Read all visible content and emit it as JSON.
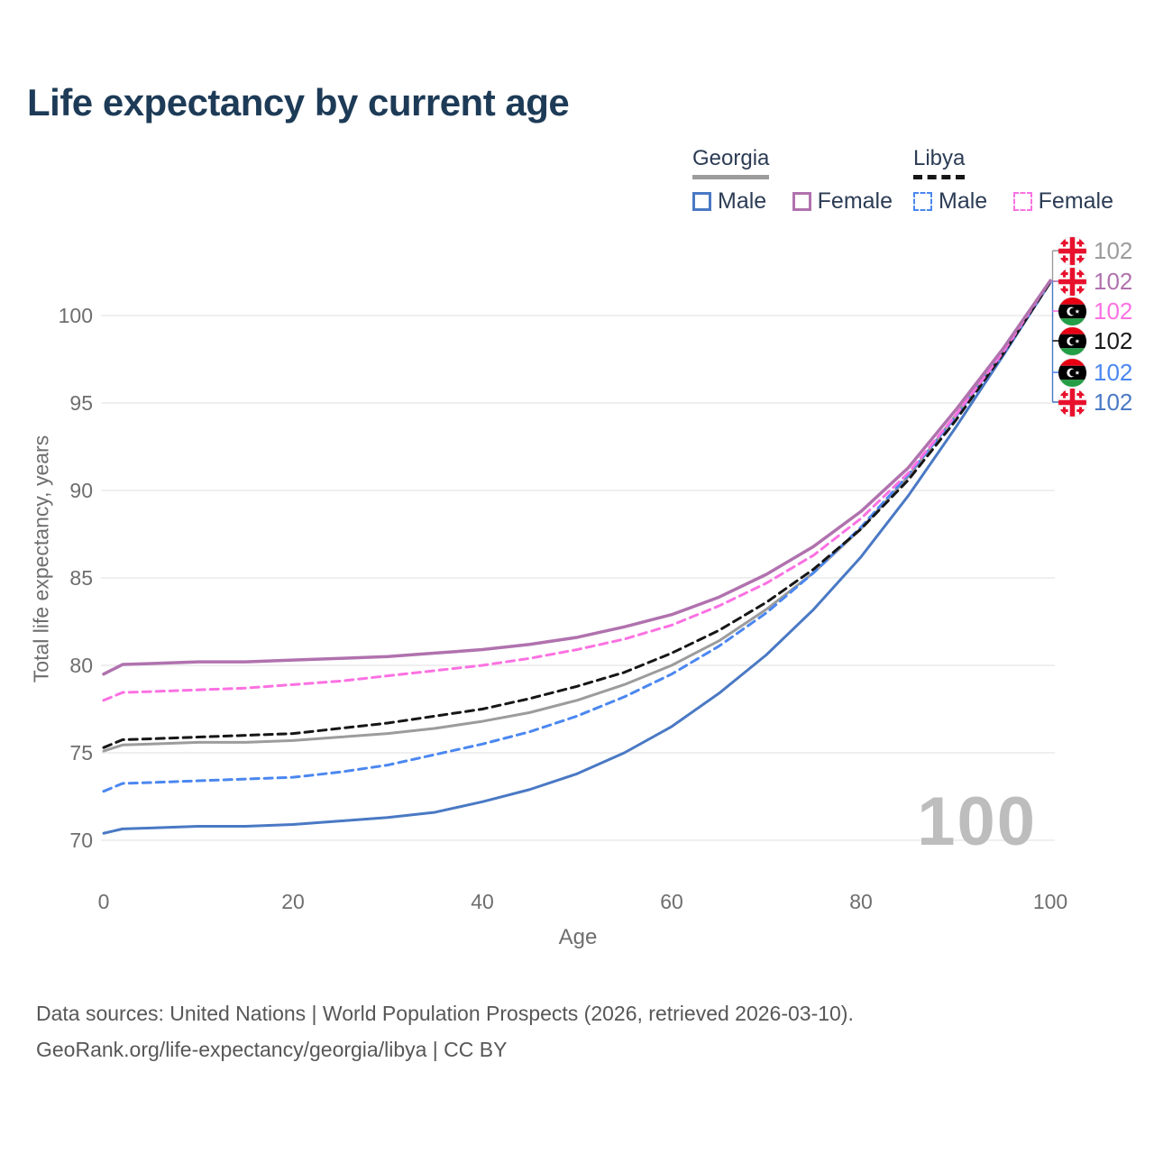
{
  "title": "Life expectancy by current age",
  "legend": {
    "groups": [
      {
        "country": "Georgia",
        "line_style": "solid",
        "underline_color": "#9c9c9c",
        "items": [
          {
            "label": "Male",
            "color": "#4a79c4"
          },
          {
            "label": "Female",
            "color": "#b072ae"
          }
        ]
      },
      {
        "country": "Libya",
        "line_style": "dashed",
        "underline_color": "#161616",
        "items": [
          {
            "label": "Male",
            "color": "#4b87f0"
          },
          {
            "label": "Female",
            "color": "#fb71e2"
          }
        ]
      }
    ]
  },
  "axes": {
    "x_label": "Age",
    "y_label": "Total life expectancy, years",
    "x_ticks": [
      0,
      20,
      40,
      60,
      80,
      100
    ],
    "y_ticks": [
      70,
      75,
      80,
      85,
      90,
      95,
      100
    ]
  },
  "watermark": "100",
  "chart_data": {
    "type": "line",
    "xlabel": "Age",
    "ylabel": "Total life expectancy, years",
    "xlim": [
      0,
      100
    ],
    "ylim": [
      68,
      103
    ],
    "grid": "horizontal",
    "x": [
      0,
      2,
      5,
      10,
      15,
      20,
      25,
      30,
      35,
      40,
      45,
      50,
      55,
      60,
      65,
      70,
      75,
      80,
      85,
      90,
      95,
      100
    ],
    "series": [
      {
        "name": "Georgia All",
        "country": "Georgia",
        "sex": "all",
        "style": "solid",
        "color": "#9c9c9c",
        "width": 3,
        "values": [
          75.1,
          75.45,
          75.5,
          75.6,
          75.6,
          75.7,
          75.9,
          76.1,
          76.4,
          76.8,
          77.3,
          78.0,
          78.9,
          80.0,
          81.4,
          83.2,
          85.3,
          87.8,
          90.8,
          94.3,
          98.0,
          102.0
        ],
        "end_label": "102"
      },
      {
        "name": "Georgia Male",
        "country": "Georgia",
        "sex": "male",
        "style": "solid",
        "color": "#4a79c4",
        "width": 3,
        "values": [
          70.4,
          70.65,
          70.7,
          70.8,
          70.8,
          70.9,
          71.1,
          71.3,
          71.6,
          72.2,
          72.9,
          73.8,
          75.0,
          76.5,
          78.4,
          80.6,
          83.2,
          86.2,
          89.7,
          93.6,
          97.7,
          101.9
        ],
        "end_label": "102"
      },
      {
        "name": "Libya Male",
        "country": "Libya",
        "sex": "male",
        "style": "dashed",
        "color": "#4b87f0",
        "width": 3,
        "values": [
          72.8,
          73.25,
          73.3,
          73.4,
          73.5,
          73.6,
          73.9,
          74.3,
          74.9,
          75.5,
          76.2,
          77.1,
          78.2,
          79.5,
          81.1,
          83.0,
          85.3,
          87.9,
          90.9,
          94.2,
          97.9,
          101.9
        ],
        "end_label": "102"
      },
      {
        "name": "Libya All",
        "country": "Libya",
        "sex": "all",
        "style": "dashed",
        "color": "#161616",
        "width": 3,
        "values": [
          75.3,
          75.75,
          75.8,
          75.9,
          76.0,
          76.1,
          76.4,
          76.7,
          77.1,
          77.5,
          78.1,
          78.8,
          79.6,
          80.7,
          82.0,
          83.6,
          85.5,
          87.8,
          90.6,
          94.0,
          97.8,
          101.9
        ],
        "end_label": "102"
      },
      {
        "name": "Libya Female",
        "country": "Libya",
        "sex": "female",
        "style": "dashed",
        "color": "#fb71e2",
        "width": 3,
        "values": [
          78.0,
          78.45,
          78.5,
          78.6,
          78.7,
          78.9,
          79.1,
          79.4,
          79.7,
          80.0,
          80.4,
          80.9,
          81.5,
          82.3,
          83.4,
          84.7,
          86.3,
          88.4,
          91.0,
          94.3,
          97.9,
          102.0
        ],
        "end_label": "102"
      },
      {
        "name": "Georgia Female",
        "country": "Georgia",
        "sex": "female",
        "style": "solid",
        "color": "#b072ae",
        "width": 3.5,
        "values": [
          79.5,
          80.05,
          80.1,
          80.2,
          80.2,
          80.3,
          80.4,
          80.5,
          80.7,
          80.9,
          81.2,
          81.6,
          82.2,
          82.9,
          83.9,
          85.2,
          86.8,
          88.8,
          91.3,
          94.6,
          98.1,
          102.0
        ],
        "end_label": "102"
      }
    ]
  },
  "end_labels": [
    {
      "flag": "georgia",
      "value": "102",
      "color": "#9c9c9c",
      "series": "Georgia All"
    },
    {
      "flag": "georgia",
      "value": "102",
      "color": "#b072ae",
      "series": "Georgia Female"
    },
    {
      "flag": "libya",
      "value": "102",
      "color": "#fb71e2",
      "series": "Libya Female"
    },
    {
      "flag": "libya",
      "value": "102",
      "color": "#1a1a1a",
      "series": "Libya All"
    },
    {
      "flag": "libya",
      "value": "102",
      "color": "#4b87f0",
      "series": "Libya Male"
    },
    {
      "flag": "georgia",
      "value": "102",
      "color": "#4a79c4",
      "series": "Georgia Male"
    }
  ],
  "footer": {
    "line1": "Data sources: United Nations | World Population Prospects (2026, retrieved 2026-03-10).",
    "line2": "GeoRank.org/life-expectancy/georgia/libya | CC BY"
  }
}
